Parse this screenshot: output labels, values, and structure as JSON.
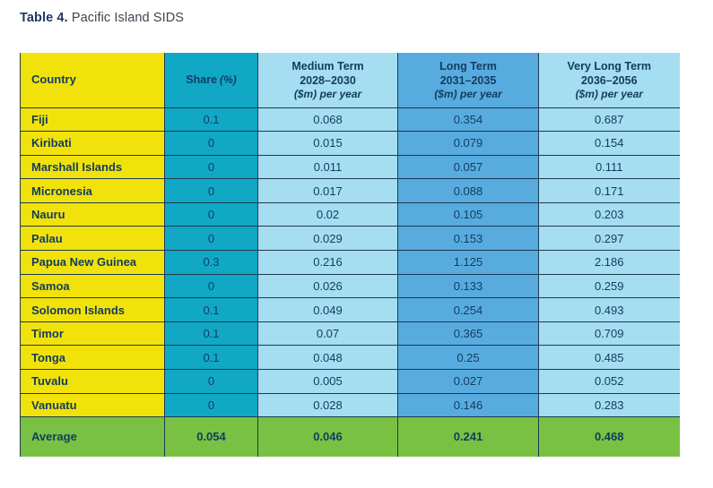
{
  "title": {
    "prefix": "Table 4.",
    "rest": "Pacific Island SIDS"
  },
  "colors": {
    "yellow": "#f2e20b",
    "teal": "#11a8c6",
    "light_blue": "#a5ddf1",
    "medium_blue": "#58abdf",
    "green": "#79c143",
    "text_dark": "#123c5e",
    "border": "#1c3a52",
    "title_accent": "#1f3864",
    "title_text": "#3d4653"
  },
  "table": {
    "columns": [
      {
        "key": "country",
        "label": "Country"
      },
      {
        "key": "share",
        "label": "Share",
        "unit": "(%)"
      },
      {
        "key": "medium",
        "label": "Medium Term",
        "period": "2028–2030",
        "unit": "($m) per year"
      },
      {
        "key": "long",
        "label": "Long Term",
        "period": "2031–2035",
        "unit": "($m) per year"
      },
      {
        "key": "very_long",
        "label": "Very Long Term",
        "period": "2036–2056",
        "unit": "($m) per year"
      }
    ],
    "rows": [
      {
        "country": "Fiji",
        "share": "0.1",
        "medium": "0.068",
        "long": "0.354",
        "very_long": "0.687"
      },
      {
        "country": "Kiribati",
        "share": "0",
        "medium": "0.015",
        "long": "0.079",
        "very_long": "0.154"
      },
      {
        "country": "Marshall Islands",
        "share": "0",
        "medium": "0.011",
        "long": "0.057",
        "very_long": "0.111"
      },
      {
        "country": "Micronesia",
        "share": "0",
        "medium": "0.017",
        "long": "0.088",
        "very_long": "0.171"
      },
      {
        "country": "Nauru",
        "share": "0",
        "medium": "0.02",
        "long": "0.105",
        "very_long": "0.203"
      },
      {
        "country": "Palau",
        "share": "0",
        "medium": "0.029",
        "long": "0.153",
        "very_long": "0.297"
      },
      {
        "country": "Papua New Guinea",
        "share": "0.3",
        "medium": "0.216",
        "long": "1.125",
        "very_long": "2.186"
      },
      {
        "country": "Samoa",
        "share": "0",
        "medium": "0.026",
        "long": "0.133",
        "very_long": "0.259"
      },
      {
        "country": "Solomon Islands",
        "share": "0.1",
        "medium": "0.049",
        "long": "0.254",
        "very_long": "0.493"
      },
      {
        "country": "Timor",
        "share": "0.1",
        "medium": "0.07",
        "long": "0.365",
        "very_long": "0.709"
      },
      {
        "country": "Tonga",
        "share": "0.1",
        "medium": "0.048",
        "long": "0.25",
        "very_long": "0.485"
      },
      {
        "country": "Tuvalu",
        "share": "0",
        "medium": "0.005",
        "long": "0.027",
        "very_long": "0.052"
      },
      {
        "country": "Vanuatu",
        "share": "0",
        "medium": "0.028",
        "long": "0.146",
        "very_long": "0.283"
      }
    ],
    "average": {
      "label": "Average",
      "share": "0.054",
      "medium": "0.046",
      "long": "0.241",
      "very_long": "0.468"
    }
  }
}
